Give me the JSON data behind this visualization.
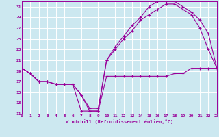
{
  "xlabel": "Windchill (Refroidissement éolien,°C)",
  "bg_color": "#cce8f0",
  "grid_color": "#ffffff",
  "line_color": "#990099",
  "spine_color": "#990099",
  "xmin": 0,
  "xmax": 23,
  "ymin": 11,
  "ymax": 32,
  "yticks": [
    11,
    13,
    15,
    17,
    19,
    21,
    23,
    25,
    27,
    29,
    31
  ],
  "xticks": [
    0,
    1,
    2,
    3,
    4,
    5,
    6,
    7,
    8,
    9,
    10,
    11,
    12,
    13,
    14,
    15,
    16,
    17,
    18,
    19,
    20,
    21,
    22,
    23
  ],
  "series1_x": [
    0,
    1,
    2,
    3,
    4,
    5,
    6,
    7,
    8,
    9,
    10,
    11,
    12,
    13,
    14,
    15,
    16,
    17,
    18,
    19,
    20,
    21,
    22,
    23
  ],
  "series1_y": [
    19.5,
    18.5,
    17.0,
    17.0,
    16.5,
    16.5,
    16.5,
    14.5,
    11.5,
    11.5,
    18.0,
    18.0,
    18.0,
    18.0,
    18.0,
    18.0,
    18.0,
    18.0,
    18.5,
    18.5,
    19.5,
    19.5,
    19.5,
    19.5
  ],
  "series2_x": [
    0,
    1,
    2,
    3,
    4,
    5,
    6,
    7,
    8,
    9,
    10,
    11,
    12,
    13,
    14,
    15,
    16,
    17,
    18,
    19,
    20,
    21,
    22,
    23
  ],
  "series2_y": [
    19.5,
    18.5,
    17.0,
    17.0,
    16.5,
    16.5,
    16.5,
    11.5,
    11.5,
    11.5,
    21.0,
    23.0,
    25.0,
    26.5,
    28.5,
    29.5,
    30.5,
    31.5,
    31.5,
    30.5,
    29.5,
    27.0,
    23.0,
    19.5
  ],
  "series3_x": [
    0,
    1,
    2,
    3,
    4,
    5,
    6,
    7,
    8,
    9,
    10,
    11,
    12,
    13,
    14,
    15,
    16,
    17,
    18,
    19,
    20,
    21,
    22,
    23
  ],
  "series3_y": [
    19.5,
    18.5,
    17.0,
    17.0,
    16.5,
    16.5,
    16.5,
    14.5,
    12.0,
    12.0,
    21.0,
    23.5,
    25.5,
    27.5,
    29.0,
    31.0,
    32.0,
    32.0,
    32.0,
    31.0,
    30.0,
    28.5,
    26.0,
    19.5
  ]
}
